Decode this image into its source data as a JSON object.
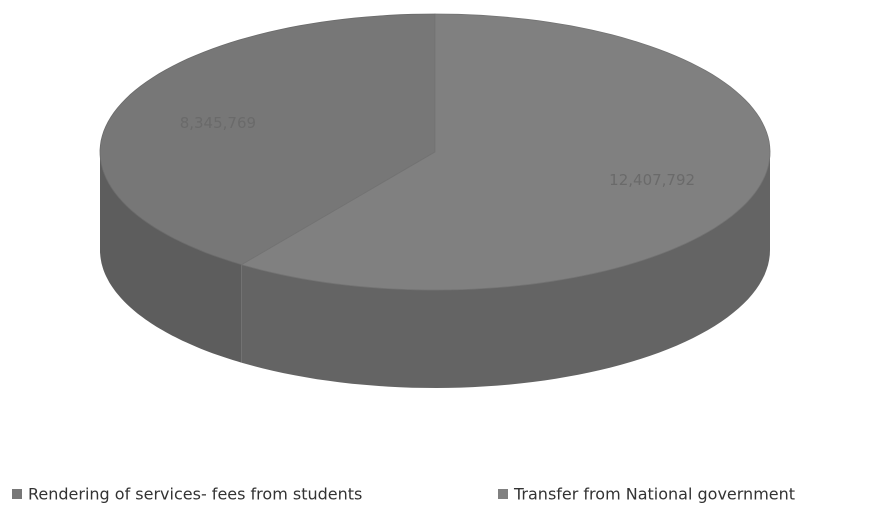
{
  "chart_data": {
    "type": "pie",
    "categories": [
      "Rendering of services- fees from students",
      "Transfer from National government"
    ],
    "values": [
      8345769,
      12407792
    ],
    "value_labels": [
      "8,345,769",
      "12,407,792"
    ],
    "colors": [
      "#777777",
      "#808080"
    ],
    "legend": "bottom"
  }
}
